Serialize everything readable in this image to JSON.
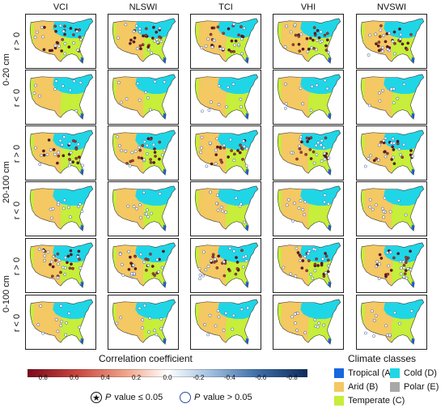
{
  "columns": [
    "VCI",
    "NLSWI",
    "TCI",
    "VHI",
    "NVSWI"
  ],
  "rows": [
    {
      "depth": "0-20 cm",
      "sign": "r > 0",
      "sig_dots": 22,
      "open_dots": 14
    },
    {
      "depth": "0-20 cm",
      "sign": "r < 0",
      "sig_dots": 0,
      "open_dots": 10
    },
    {
      "depth": "20-100 cm",
      "sign": "r > 0",
      "sig_dots": 18,
      "open_dots": 16
    },
    {
      "depth": "20-100 cm",
      "sign": "r < 0",
      "sig_dots": 0,
      "open_dots": 12
    },
    {
      "depth": "0-100 cm",
      "sign": "r > 0",
      "sig_dots": 20,
      "open_dots": 16
    },
    {
      "depth": "0-100 cm",
      "sign": "r < 0",
      "sig_dots": 0,
      "open_dots": 12
    }
  ],
  "depth_labels": [
    "0-20 cm",
    "20-100 cm",
    "0-100 cm"
  ],
  "colorbar": {
    "title": "Correlation coefficient",
    "ticks": [
      "0.8",
      "0.6",
      "0.4",
      "0.2",
      "0.0",
      "-0.2",
      "-0.4",
      "-0.6",
      "-0.8"
    ],
    "range": [
      0.9,
      -0.9
    ],
    "colors": [
      "#7a0a1c",
      "#c9473f",
      "#f2a98e",
      "#ffffff",
      "#a9c6e3",
      "#3d6ea8",
      "#0d2b5c"
    ]
  },
  "climate": {
    "title": "Climate classes",
    "classes": [
      {
        "label": "Tropical (A)",
        "color": "#1766e0"
      },
      {
        "label": "Cold (D)",
        "color": "#1fd6e6"
      },
      {
        "label": "Arid (B)",
        "color": "#f4c862"
      },
      {
        "label": "Polar (E)",
        "color": "#a8a8a8"
      },
      {
        "label": "Temperate (C)",
        "color": "#c6ee3a"
      }
    ]
  },
  "pvalue": {
    "sig_symbol": "★",
    "sig_label": "value ≤ 0.05",
    "nonsig_label": "value  >  0.05",
    "p": "P"
  }
}
